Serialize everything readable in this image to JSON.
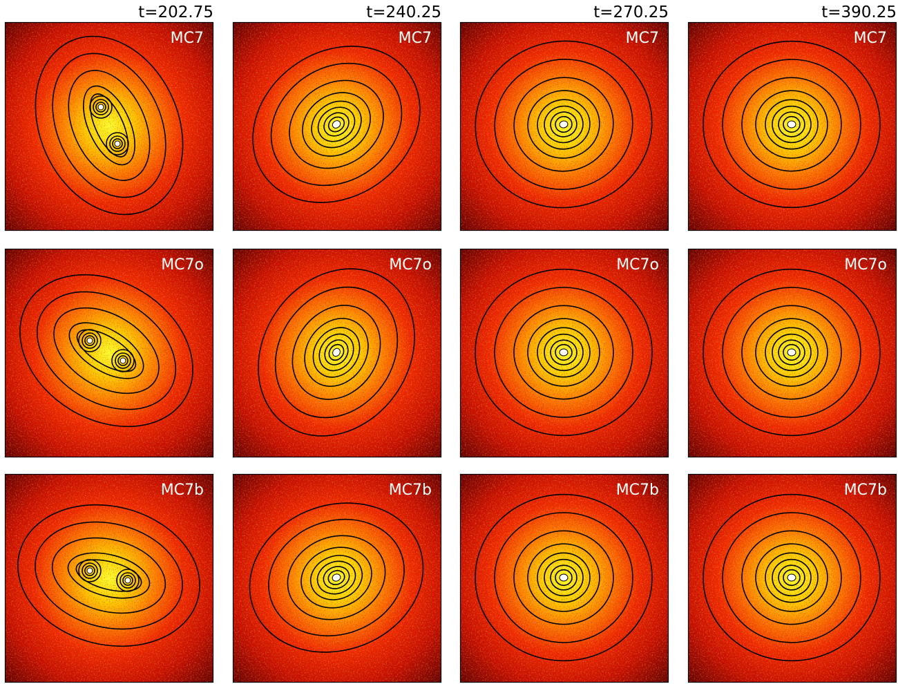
{
  "columns": [
    "t=202.75",
    "t=240.25",
    "t=270.25",
    "t=390.25"
  ],
  "rows": [
    {
      "label": "MC7"
    },
    {
      "label": "MC7o"
    },
    {
      "label": "MC7b"
    }
  ]
}
